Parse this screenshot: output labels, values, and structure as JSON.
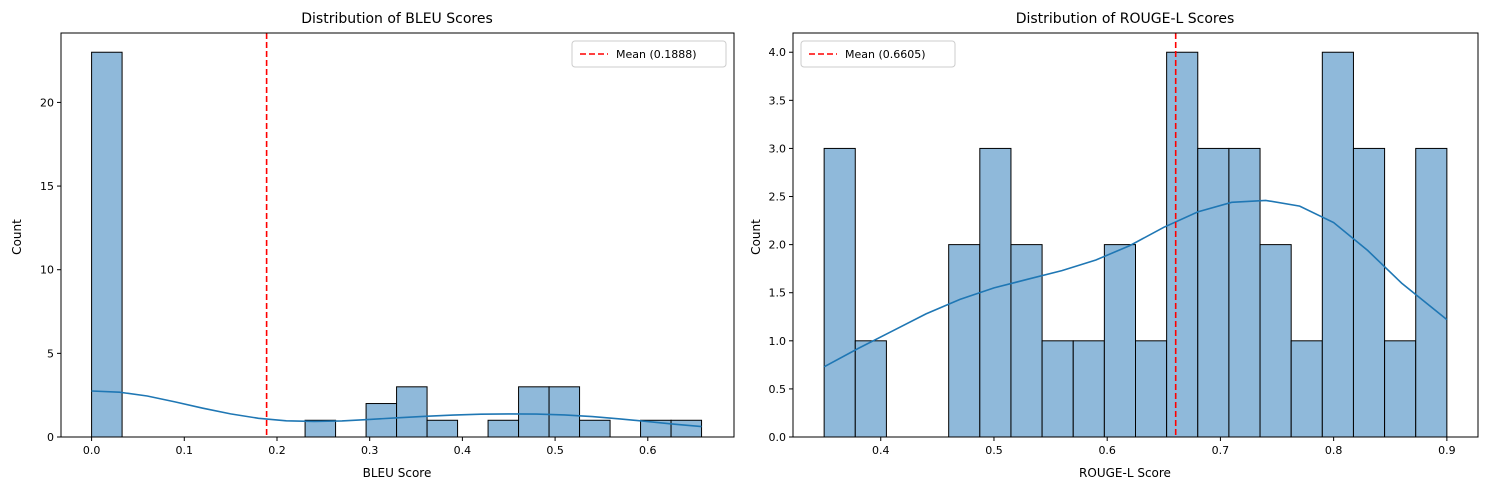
{
  "chart_data": [
    {
      "type": "bar",
      "title": "Distribution of BLEU Scores",
      "xlabel": "BLEU Score",
      "ylabel": "Count",
      "xlim": [
        -0.033,
        0.693
      ],
      "ylim": [
        0,
        24.15
      ],
      "xticks": [
        0.0,
        0.1,
        0.2,
        0.3,
        0.4,
        0.5,
        0.6
      ],
      "xtick_labels": [
        "0.0",
        "0.1",
        "0.2",
        "0.3",
        "0.4",
        "0.5",
        "0.6"
      ],
      "yticks": [
        0,
        5,
        10,
        15,
        20
      ],
      "ytick_labels": [
        "0",
        "5",
        "10",
        "15",
        "20"
      ],
      "bin_edges": [
        0.0,
        0.0329,
        0.0658,
        0.0987,
        0.1316,
        0.1645,
        0.1974,
        0.2303,
        0.2632,
        0.2961,
        0.329,
        0.3619,
        0.3948,
        0.4277,
        0.4606,
        0.4935,
        0.5264,
        0.5593,
        0.5922,
        0.6251,
        0.658
      ],
      "counts": [
        23,
        0,
        0,
        0,
        0,
        0,
        0,
        1,
        0,
        2,
        3,
        1,
        0,
        1,
        3,
        3,
        1,
        0,
        1,
        1
      ],
      "kde": {
        "x": [
          0.0,
          0.03,
          0.06,
          0.09,
          0.12,
          0.15,
          0.18,
          0.21,
          0.24,
          0.27,
          0.3,
          0.33,
          0.36,
          0.39,
          0.42,
          0.45,
          0.48,
          0.51,
          0.54,
          0.57,
          0.6,
          0.63,
          0.658
        ],
        "y": [
          2.75,
          2.68,
          2.45,
          2.1,
          1.72,
          1.38,
          1.12,
          0.97,
          0.93,
          0.96,
          1.05,
          1.15,
          1.24,
          1.31,
          1.36,
          1.38,
          1.37,
          1.32,
          1.22,
          1.08,
          0.92,
          0.76,
          0.62
        ]
      },
      "mean": 0.1888,
      "legend": {
        "label": "Mean (0.1888)",
        "position": "upper right"
      },
      "colors": {
        "bar_fill": "#8fb9da",
        "bar_edge": "#000000",
        "kde": "#1f77b4",
        "mean_line": "#ff0000"
      }
    },
    {
      "type": "bar",
      "title": "Distribution of ROUGE-L Scores",
      "xlabel": "ROUGE-L Score",
      "ylabel": "Count",
      "xlim": [
        0.3225,
        0.9275
      ],
      "ylim": [
        0,
        4.2
      ],
      "xticks": [
        0.4,
        0.5,
        0.6,
        0.7,
        0.8,
        0.9
      ],
      "xtick_labels": [
        "0.4",
        "0.5",
        "0.6",
        "0.7",
        "0.8",
        "0.9"
      ],
      "yticks": [
        0,
        0.5,
        1.0,
        1.5,
        2.0,
        2.5,
        3.0,
        3.5,
        4.0
      ],
      "ytick_labels": [
        "0.0",
        "0.5",
        "1.0",
        "1.5",
        "2.0",
        "2.5",
        "3.0",
        "3.5",
        "4.0"
      ],
      "bin_edges": [
        0.35,
        0.3775,
        0.405,
        0.4325,
        0.46,
        0.4875,
        0.515,
        0.5425,
        0.57,
        0.5975,
        0.625,
        0.6525,
        0.68,
        0.7075,
        0.735,
        0.7625,
        0.79,
        0.8175,
        0.845,
        0.8725,
        0.9
      ],
      "counts": [
        3,
        1,
        0,
        0,
        2,
        3,
        2,
        1,
        1,
        2,
        1,
        4,
        3,
        3,
        2,
        1,
        4,
        3,
        1,
        3
      ],
      "kde": {
        "x": [
          0.35,
          0.38,
          0.41,
          0.44,
          0.47,
          0.5,
          0.53,
          0.56,
          0.59,
          0.62,
          0.65,
          0.68,
          0.71,
          0.74,
          0.77,
          0.8,
          0.83,
          0.86,
          0.9
        ],
        "y": [
          0.73,
          0.92,
          1.1,
          1.28,
          1.43,
          1.55,
          1.64,
          1.73,
          1.84,
          1.99,
          2.18,
          2.34,
          2.44,
          2.46,
          2.4,
          2.23,
          1.94,
          1.6,
          1.22
        ]
      },
      "mean": 0.6605,
      "legend": {
        "label": "Mean (0.6605)",
        "position": "upper left"
      },
      "colors": {
        "bar_fill": "#8fb9da",
        "bar_edge": "#000000",
        "kde": "#1f77b4",
        "mean_line": "#ff0000"
      }
    }
  ]
}
